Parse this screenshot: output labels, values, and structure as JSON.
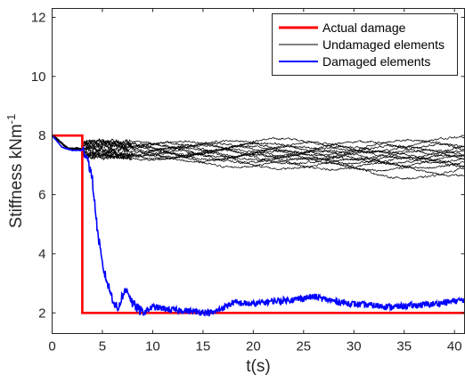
{
  "chart_data": {
    "type": "line",
    "xlabel": "t(s)",
    "ylabel": "Stiffness kNm",
    "ylabel_superscript": "-1",
    "xlim": [
      0,
      41
    ],
    "ylim": [
      1.3,
      12.3
    ],
    "xticks": [
      "0",
      "5",
      "10",
      "15",
      "20",
      "25",
      "30",
      "35",
      "40"
    ],
    "yticks": [
      "2",
      "4",
      "6",
      "8",
      "10",
      "12"
    ],
    "grid": false,
    "legend_position": "top-right",
    "series": [
      {
        "name": "Actual damage",
        "color": "#ff0000",
        "points": [
          [
            0,
            8
          ],
          [
            3,
            8
          ],
          [
            3,
            2
          ],
          [
            41,
            2
          ]
        ]
      },
      {
        "name": "Undamaged elements",
        "color": "#000000",
        "count": 15,
        "final_values": [
          7.7,
          7.6,
          7.55,
          7.5,
          7.45,
          7.4,
          7.35,
          7.3,
          7.25,
          7.2,
          7.15,
          7.05,
          7.0,
          6.9,
          6.8
        ]
      },
      {
        "name": "Damaged elements",
        "color": "#0000ff",
        "points": [
          [
            0,
            8.0
          ],
          [
            1,
            7.6
          ],
          [
            2,
            7.5
          ],
          [
            3,
            7.5
          ],
          [
            3.5,
            7.3
          ],
          [
            4,
            6.5
          ],
          [
            4.5,
            4.8
          ],
          [
            5,
            3.6
          ],
          [
            5.5,
            3.0
          ],
          [
            6,
            2.5
          ],
          [
            6.5,
            2.1
          ],
          [
            7,
            2.6
          ],
          [
            7.5,
            2.8
          ],
          [
            8,
            2.3
          ],
          [
            9,
            2.0
          ],
          [
            10,
            2.2
          ],
          [
            12,
            2.1
          ],
          [
            14,
            2.05
          ],
          [
            16,
            2.0
          ],
          [
            18,
            2.35
          ],
          [
            20,
            2.3
          ],
          [
            22,
            2.4
          ],
          [
            24,
            2.45
          ],
          [
            26,
            2.55
          ],
          [
            28,
            2.4
          ],
          [
            30,
            2.3
          ],
          [
            32,
            2.25
          ],
          [
            34,
            2.2
          ],
          [
            36,
            2.25
          ],
          [
            38,
            2.3
          ],
          [
            40,
            2.4
          ],
          [
            41,
            2.45
          ]
        ]
      }
    ]
  }
}
